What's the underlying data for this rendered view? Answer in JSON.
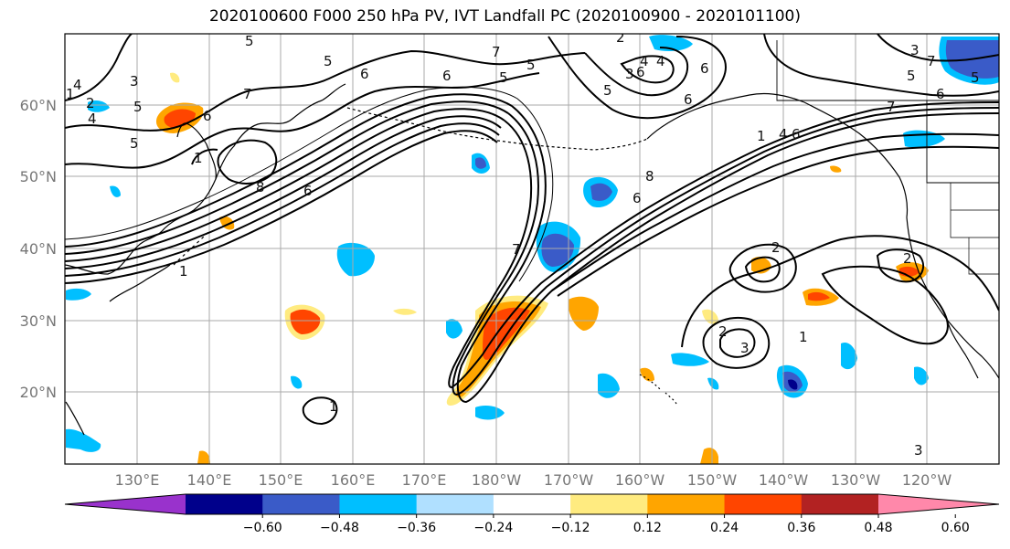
{
  "title": "2020100600 F000 250 hPa PV, IVT Landfall PC (2020100900 - 2020101100)",
  "lat_labels": [
    "60°N",
    "50°N",
    "40°N",
    "30°N",
    "20°N"
  ],
  "lon_labels": [
    "130°E",
    "140°E",
    "150°E",
    "160°E",
    "170°E",
    "180°W",
    "170°W",
    "160°W",
    "150°W",
    "140°W",
    "130°W",
    "120°W"
  ],
  "colorbar": {
    "colors": [
      "#9932CC",
      "#00008B",
      "#3A5BC8",
      "#00BFFF",
      "#B0E0FF",
      "#FFFFFF",
      "#FFEB80",
      "#FFA500",
      "#FF4500",
      "#B22222",
      "#FF88AA"
    ],
    "tick_labels": [
      "−0.60",
      "−0.48",
      "−0.36",
      "−0.24",
      "−0.12",
      "0.12",
      "0.24",
      "0.36",
      "0.48",
      "0.60"
    ]
  },
  "contour_labels": [
    "5",
    "4",
    "2",
    "4",
    "3",
    "5",
    "6",
    "5",
    "7",
    "1",
    "6",
    "5",
    "8",
    "6",
    "8",
    "7",
    "5",
    "6",
    "6",
    "2",
    "4",
    "7",
    "5",
    "6",
    "6",
    "3",
    "6",
    "5",
    "4",
    "6",
    "7",
    "1",
    "4",
    "3",
    "7",
    "5",
    "6",
    "3",
    "5",
    "1",
    "2",
    "1",
    "2",
    "3",
    "2",
    "1",
    "1"
  ]
}
